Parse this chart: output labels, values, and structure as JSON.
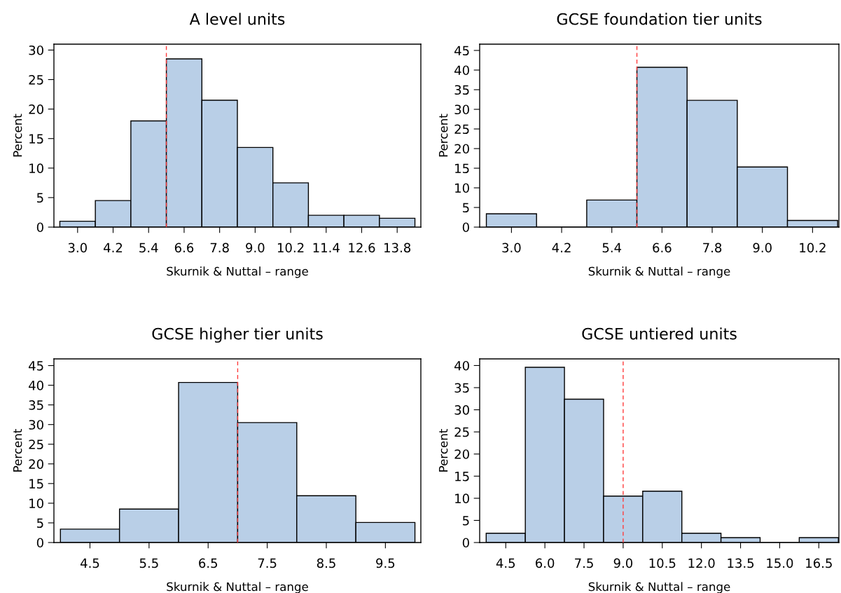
{
  "chart_data": [
    {
      "type": "histogram",
      "title": "A level units",
      "xlabel": "Skurnik & Nuttal – range",
      "ylabel": "Percent",
      "color": "#b9cfe7",
      "grid": false,
      "bins": [
        2.4,
        3.6,
        4.8,
        6.0,
        7.2,
        8.4,
        9.6,
        10.8,
        12.0,
        13.2,
        14.4
      ],
      "values": [
        1.0,
        4.5,
        18.0,
        28.5,
        21.5,
        13.5,
        7.5,
        2.0,
        2.0,
        1.5
      ],
      "xlim": [
        2.2,
        14.6
      ],
      "xticks": [
        {
          "value": 3,
          "label": "3.0"
        },
        4.2,
        5.4,
        6.6,
        7.8,
        {
          "value": 9,
          "label": "9.0"
        },
        10.2,
        11.4,
        12.6,
        13.8
      ],
      "ylim": [
        0,
        31
      ],
      "yticks": [
        0,
        5,
        10,
        15,
        20,
        25,
        30
      ],
      "ref_lines": [
        {
          "axis": "x",
          "value": 6.0,
          "color": "#ff3b3b",
          "line_style": "dashed"
        }
      ]
    },
    {
      "type": "histogram",
      "title": "GCSE foundation tier units",
      "xlabel": "Skurnik & Nuttal – range",
      "ylabel": "Percent",
      "color": "#b9cfe7",
      "grid": false,
      "bins": [
        2.4,
        3.6,
        4.8,
        6.0,
        7.2,
        8.4,
        9.6,
        10.8
      ],
      "values": [
        3.4,
        0,
        6.9,
        40.7,
        32.3,
        15.3,
        1.7
      ],
      "xlim": [
        2.24,
        10.83
      ],
      "xticks": [
        {
          "value": 3,
          "label": "3.0"
        },
        4.2,
        5.4,
        6.6,
        7.8,
        {
          "value": 9,
          "label": "9.0"
        },
        10.2
      ],
      "ylim": [
        0,
        46.6
      ],
      "yticks": [
        0,
        5,
        10,
        15,
        20,
        25,
        30,
        35,
        40,
        45
      ],
      "ref_lines": [
        {
          "axis": "x",
          "value": 6.0,
          "color": "#ff3b3b",
          "line_style": "dashed"
        }
      ]
    },
    {
      "type": "histogram",
      "title": "GCSE higher tier units",
      "xlabel": "Skurnik & Nuttal – range",
      "ylabel": "Percent",
      "color": "#b9cfe7",
      "grid": false,
      "bins": [
        4.0,
        5.0,
        6.0,
        7.0,
        8.0,
        9.0,
        10.0
      ],
      "values": [
        3.4,
        8.5,
        40.7,
        30.5,
        11.9,
        5.1
      ],
      "xlim": [
        3.89,
        10.1
      ],
      "xticks": [
        4.5,
        5.5,
        6.5,
        7.5,
        8.5,
        9.5
      ],
      "ylim": [
        0,
        46.7
      ],
      "yticks": [
        0,
        5,
        10,
        15,
        20,
        25,
        30,
        35,
        40,
        45
      ],
      "ref_lines": [
        {
          "axis": "x",
          "value": 7.0,
          "color": "#ff3b3b",
          "line_style": "dashed"
        }
      ]
    },
    {
      "type": "histogram",
      "title": "GCSE untiered units",
      "xlabel": "Skurnik & Nuttal – range",
      "ylabel": "Percent",
      "color": "#b9cfe7",
      "grid": false,
      "bins": [
        3.75,
        5.25,
        6.75,
        8.25,
        9.75,
        11.25,
        12.75,
        14.25,
        15.75,
        17.25
      ],
      "values": [
        2.1,
        39.6,
        32.4,
        10.5,
        11.6,
        2.1,
        1.1,
        0,
        1.1
      ],
      "xlim": [
        3.5,
        17.27
      ],
      "xticks": [
        4.5,
        {
          "value": 6,
          "label": "6.0"
        },
        7.5,
        {
          "value": 9,
          "label": "9.0"
        },
        10.5,
        {
          "value": 12,
          "label": "12.0"
        },
        13.5,
        {
          "value": 15,
          "label": "15.0"
        },
        16.5
      ],
      "ylim": [
        0,
        41.5
      ],
      "yticks": [
        0,
        5,
        10,
        15,
        20,
        25,
        30,
        35,
        40
      ],
      "ref_lines": [
        {
          "axis": "x",
          "value": 9.0,
          "color": "#ff3b3b",
          "line_style": "dashed"
        }
      ]
    }
  ]
}
